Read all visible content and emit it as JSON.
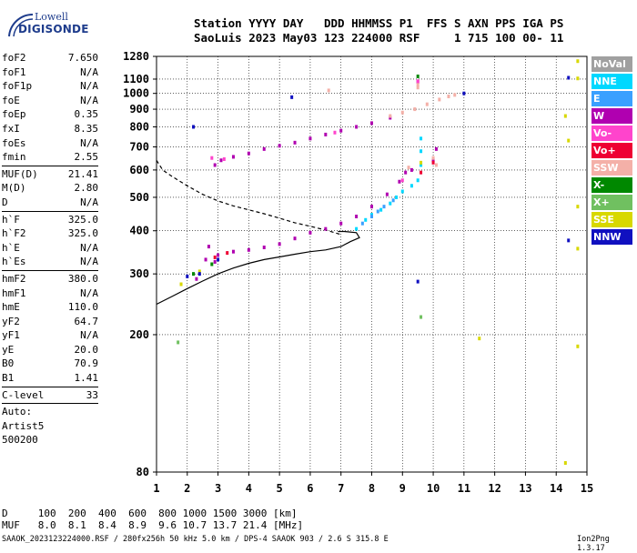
{
  "logo": {
    "line1": "Lowell",
    "line2": "DIGISONDE"
  },
  "header": {
    "labels": "Station YYYY DAY   DDD HHMMSS P1  FFS S AXN PPS IGA PS",
    "values": "SaoLuis 2023 May03 123 224000 RSF     1 715 100 00- 11"
  },
  "params": [
    {
      "name": "foF2",
      "value": "7.650"
    },
    {
      "name": "foF1",
      "value": "N/A"
    },
    {
      "name": "foF1p",
      "value": "N/A"
    },
    {
      "name": "foE",
      "value": "N/A"
    },
    {
      "name": "foEp",
      "value": "0.35"
    },
    {
      "name": "fxI",
      "value": "8.35"
    },
    {
      "name": "foEs",
      "value": "N/A"
    },
    {
      "name": "fmin",
      "value": "2.55"
    },
    {
      "sep": true
    },
    {
      "name": "MUF(D)",
      "value": "21.41"
    },
    {
      "name": "M(D)",
      "value": "2.80"
    },
    {
      "name": "D",
      "value": "N/A"
    },
    {
      "sep": true
    },
    {
      "name": "h`F",
      "value": "325.0"
    },
    {
      "name": "h`F2",
      "value": "325.0"
    },
    {
      "name": "h`E",
      "value": "N/A"
    },
    {
      "name": "h`Es",
      "value": "N/A"
    },
    {
      "sep": true
    },
    {
      "name": "hmF2",
      "value": "380.0"
    },
    {
      "name": "hmF1",
      "value": "N/A"
    },
    {
      "name": "hmE",
      "value": "110.0"
    },
    {
      "name": "yF2",
      "value": "64.7"
    },
    {
      "name": "yF1",
      "value": "N/A"
    },
    {
      "name": "yE",
      "value": "20.0"
    },
    {
      "name": "B0",
      "value": "70.9"
    },
    {
      "name": "B1",
      "value": "1.41"
    },
    {
      "sep": true
    },
    {
      "name": "C-level",
      "value": "33"
    },
    {
      "sep": true
    }
  ],
  "auto": [
    "Auto:",
    "Artist5",
    "500200"
  ],
  "legend": [
    {
      "label": "NoVal",
      "color": "#a0a0a0"
    },
    {
      "label": "NNE",
      "color": "#00d8ff"
    },
    {
      "label": "E",
      "color": "#3aa0ff"
    },
    {
      "label": "W",
      "color": "#b000b0"
    },
    {
      "label": "Vo-",
      "color": "#ff44cc"
    },
    {
      "label": "Vo+",
      "color": "#ee0033"
    },
    {
      "label": "SSW",
      "color": "#f4b0a8"
    },
    {
      "label": "X-",
      "color": "#008800"
    },
    {
      "label": "X+",
      "color": "#70c060"
    },
    {
      "label": "SSE",
      "color": "#d8d800"
    },
    {
      "label": "NNW",
      "color": "#1010c0"
    }
  ],
  "mufTable": {
    "dLine": "D     100  200  400  600  800 1000 1500 3000 [km]",
    "mufLine": "MUF   8.0  8.1  8.4  8.9  9.6 10.7 13.7 21.4 [MHz]"
  },
  "footer": {
    "text": "SAAOK_2023123224000.RSF / 280fx256h 50 kHz 5.0 km / DPS-4 SAAOK 903 / 2.6 S 315.8 E",
    "version": "Ion2Png 1.3.17"
  },
  "chart_data": {
    "type": "scatter",
    "title": "",
    "xlabel": "",
    "ylabel": "",
    "xlim": [
      1,
      15
    ],
    "ylim": [
      80,
      1280
    ],
    "xticks": [
      1,
      2,
      3,
      4,
      5,
      6,
      7,
      8,
      9,
      10,
      11,
      12,
      13,
      14,
      15
    ],
    "yticks": [
      80,
      200,
      300,
      400,
      500,
      600,
      700,
      800,
      900,
      1000,
      1100,
      1280
    ],
    "yscale": "log",
    "grid": true,
    "series": [
      {
        "name": "W",
        "color": "#b000b0",
        "points": [
          [
            2.7,
            360
          ],
          [
            2.9,
            620
          ],
          [
            3.1,
            640
          ],
          [
            3.5,
            655
          ],
          [
            4.0,
            670
          ],
          [
            4.5,
            690
          ],
          [
            5.0,
            705
          ],
          [
            5.5,
            720
          ],
          [
            6.0,
            740
          ],
          [
            6.5,
            760
          ],
          [
            7.0,
            780
          ],
          [
            7.5,
            800
          ],
          [
            8.0,
            820
          ],
          [
            8.6,
            850
          ],
          [
            2.9,
            325
          ],
          [
            3.5,
            348
          ],
          [
            4.0,
            352
          ],
          [
            4.5,
            358
          ],
          [
            5.0,
            366
          ],
          [
            5.5,
            380
          ],
          [
            6.0,
            395
          ],
          [
            6.5,
            405
          ],
          [
            7.0,
            420
          ],
          [
            7.5,
            440
          ],
          [
            8.0,
            470
          ],
          [
            8.5,
            510
          ],
          [
            8.9,
            555
          ],
          [
            9.1,
            590
          ],
          [
            9.3,
            600
          ],
          [
            10.0,
            640
          ],
          [
            10.1,
            690
          ],
          [
            2.3,
            290
          ],
          [
            2.6,
            330
          ],
          [
            3.0,
            340
          ],
          [
            9.5,
            1080
          ]
        ]
      },
      {
        "name": "SSW",
        "color": "#f4b0a8",
        "points": [
          [
            8.6,
            860
          ],
          [
            9.0,
            880
          ],
          [
            9.4,
            900
          ],
          [
            9.8,
            930
          ],
          [
            10.2,
            960
          ],
          [
            10.5,
            980
          ],
          [
            10.7,
            990
          ],
          [
            9.5,
            1040
          ],
          [
            9.5,
            1060
          ],
          [
            6.6,
            1020
          ],
          [
            10.0,
            650
          ],
          [
            10.1,
            620
          ],
          [
            9.2,
            610
          ]
        ]
      },
      {
        "name": "NNE",
        "color": "#00d8ff",
        "points": [
          [
            7.5,
            405
          ],
          [
            7.8,
            430
          ],
          [
            8.0,
            445
          ],
          [
            8.3,
            460
          ],
          [
            8.6,
            480
          ],
          [
            8.8,
            500
          ],
          [
            9.0,
            520
          ],
          [
            9.3,
            540
          ],
          [
            9.5,
            560
          ],
          [
            9.6,
            620
          ],
          [
            9.6,
            680
          ],
          [
            9.6,
            740
          ]
        ]
      },
      {
        "name": "E",
        "color": "#3aa0ff",
        "points": [
          [
            7.7,
            420
          ],
          [
            8.0,
            440
          ],
          [
            8.2,
            455
          ],
          [
            8.4,
            470
          ],
          [
            8.7,
            490
          ]
        ]
      },
      {
        "name": "Vo-",
        "color": "#ff44cc",
        "points": [
          [
            2.8,
            650
          ],
          [
            3.2,
            645
          ],
          [
            6.8,
            770
          ],
          [
            9.0,
            560
          ],
          [
            9.5,
            1085
          ]
        ]
      },
      {
        "name": "Vo+",
        "color": "#ee0033",
        "points": [
          [
            2.9,
            335
          ],
          [
            3.3,
            345
          ],
          [
            9.6,
            590
          ],
          [
            10.0,
            630
          ]
        ]
      },
      {
        "name": "X-",
        "color": "#008800",
        "points": [
          [
            2.2,
            300
          ],
          [
            2.8,
            320
          ],
          [
            9.5,
            1120
          ]
        ]
      },
      {
        "name": "X+",
        "color": "#70c060",
        "points": [
          [
            1.7,
            190
          ],
          [
            9.6,
            225
          ]
        ]
      },
      {
        "name": "SSE",
        "color": "#d8d800",
        "points": [
          [
            1.8,
            280
          ],
          [
            2.4,
            305
          ],
          [
            9.6,
            630
          ],
          [
            11.5,
            195
          ],
          [
            14.3,
            860
          ],
          [
            14.4,
            730
          ],
          [
            14.7,
            1240
          ],
          [
            14.7,
            1105
          ],
          [
            14.7,
            470
          ],
          [
            14.7,
            355
          ],
          [
            14.7,
            185
          ],
          [
            14.3,
            85
          ]
        ]
      },
      {
        "name": "NNW",
        "color": "#1010c0",
        "points": [
          [
            2.0,
            295
          ],
          [
            2.4,
            300
          ],
          [
            2.2,
            800
          ],
          [
            5.4,
            975
          ],
          [
            11.0,
            1000
          ],
          [
            14.4,
            375
          ],
          [
            14.4,
            1110
          ],
          [
            9.5,
            285
          ],
          [
            3.0,
            330
          ]
        ]
      }
    ],
    "curves": [
      {
        "name": "profile",
        "style": "solid",
        "points": [
          [
            1,
            245
          ],
          [
            1.5,
            258
          ],
          [
            2,
            272
          ],
          [
            2.5,
            286
          ],
          [
            3,
            300
          ],
          [
            3.5,
            312
          ],
          [
            4,
            322
          ],
          [
            4.5,
            330
          ],
          [
            5,
            336
          ],
          [
            5.5,
            342
          ],
          [
            6,
            348
          ],
          [
            6.5,
            352
          ],
          [
            7,
            360
          ],
          [
            7.3,
            372
          ],
          [
            7.6,
            382
          ],
          [
            7.5,
            395
          ],
          [
            7.1,
            398
          ],
          [
            6.9,
            398
          ]
        ]
      },
      {
        "name": "mufcurve",
        "style": "dashed",
        "points": [
          [
            1,
            640
          ],
          [
            1.2,
            600
          ],
          [
            1.5,
            575
          ],
          [
            2.0,
            540
          ],
          [
            2.5,
            510
          ],
          [
            3.0,
            488
          ],
          [
            3.5,
            472
          ],
          [
            4.0,
            460
          ],
          [
            4.5,
            448
          ],
          [
            5.0,
            435
          ],
          [
            5.5,
            422
          ],
          [
            6.0,
            412
          ],
          [
            6.5,
            402
          ],
          [
            7.0,
            390
          ]
        ]
      }
    ]
  }
}
